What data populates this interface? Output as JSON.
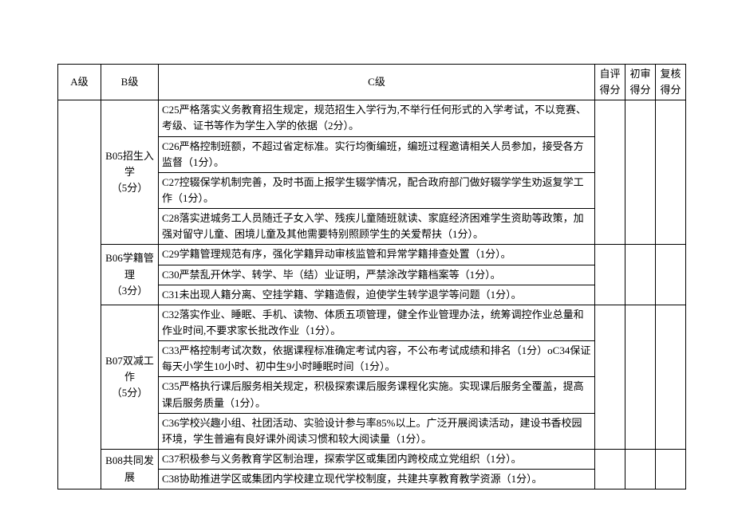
{
  "headers": {
    "a": "A级",
    "b": "B级",
    "c": "C级",
    "s1": "自评得分",
    "s2": "初审得分",
    "s3": "复核得分"
  },
  "groups": [
    {
      "b_title": "B05招生入学",
      "b_points": "（5分）",
      "items": [
        "C25严格落实义务教育招生规定，规范招生入学行为,不举行任何形式的入学考试，不以竞赛、考级、证书等作为学生入学的依据（2分）。",
        "C26严格控制班额，不超过省定标准。实行均衡编班，编班过程邀请相关人员参加，接受各方监督（1分）。",
        "C27控辍保学机制完善，及时书面上报学生辍学情况，配合政府部门做好辍学学生劝返复学工作（1分）。",
        "C28落实进城务工人员随迁子女入学、残疾儿童随班就读、家庭经济困难学生资助等政策，加强对留守儿童、困境儿童及其他需要特别照顾学生的关爱帮扶（1分）。"
      ]
    },
    {
      "b_title": "B06学籍管理",
      "b_points": "（3分）",
      "items": [
        "C29学籍管理规范有序，强化学籍异动审核监管和异常学籍排查处置（1分）。",
        "C30严禁乱开休学、转学、毕（结）业证明，严禁涂改学籍档案等（1分）。",
        "C31未出现人籍分离、空挂学籍、学籍造假，迫使学生转学退学等问题（1分）。"
      ]
    },
    {
      "b_title": "B07双减工作",
      "b_points": "（5分）",
      "items": [
        "C32落实作业、睡眠、手机、读物、体质五项管理，健全作业管理办法，统筹调控作业总量和作业时间,不要求家长批改作业（1分）。",
        "C33严格控制考试次数，依据课程标准确定考试内容，不公布考试成绩和排名（1分）oC34保证每天小学生10小时、初中生9小时睡眠时间（1分）。",
        "C35严格执行课后服务相关规定，积极探索课后服务课程化实施。实现课后服务全覆盖，提高课后服务质量（1分）。",
        "C36学校兴趣小组、社团活动、实验设计参与率85%以上。广泛开展阅读活动，建设书香校园环境，学生普遍有良好课外阅读习惯和较大阅读量（1分）。"
      ]
    },
    {
      "b_title": "B08共同发展",
      "b_points": "",
      "items": [
        "C37积极参与义务教育学区制治理，探索学区或集团内跨校成立党组织（1分）。",
        "C38协助推进学区或集团内学校建立现代学校制度，共建共享教育教学资源（1分）。"
      ]
    }
  ]
}
